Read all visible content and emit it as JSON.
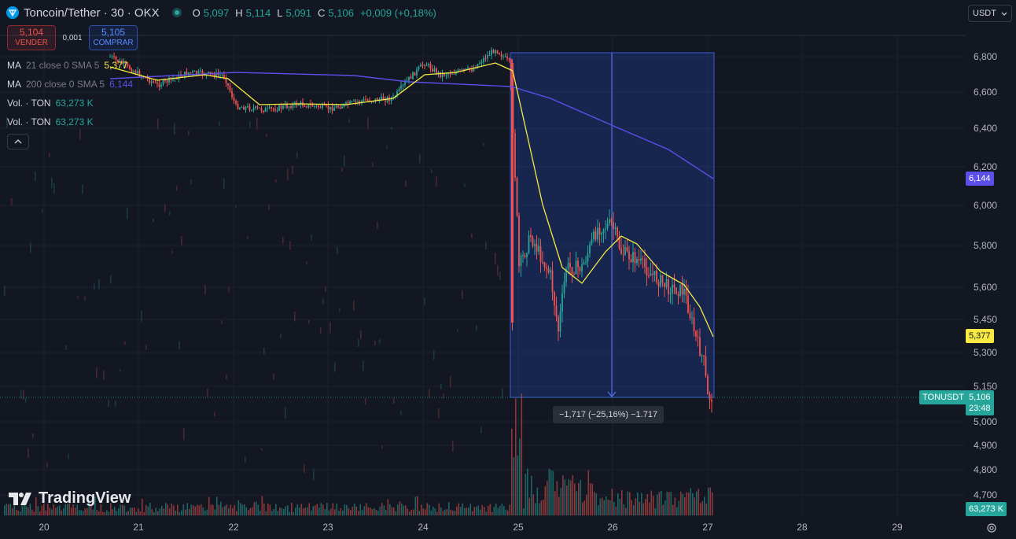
{
  "header": {
    "symbol": "Toncoin/Tether · 30 · OKX",
    "ohlc": [
      {
        "key": "O",
        "value": "5,097"
      },
      {
        "key": "H",
        "value": "5,114"
      },
      {
        "key": "L",
        "value": "5,091"
      },
      {
        "key": "C",
        "value": "5,106"
      }
    ],
    "change": "+0,009 (+0,18%)"
  },
  "trade": {
    "sell_price": "5,104",
    "sell_label": "VENDER",
    "spread": "0,001",
    "buy_price": "5,105",
    "buy_label": "COMPRAR"
  },
  "indicators": [
    {
      "name": "MA",
      "params": "21 close 0 SMA 5",
      "value": "5,377",
      "color": "#f5e942"
    },
    {
      "name": "MA",
      "params": "200 close 0 SMA 5",
      "value": "6,144",
      "color": "#5c4ee8"
    },
    {
      "name": "Vol. · TON",
      "params": "",
      "value": "63,273 K",
      "color": "#26a69a"
    },
    {
      "name": "Vol. · TON",
      "params": "",
      "value": "63,273 K",
      "color": "#26a69a"
    }
  ],
  "currency": "USDT",
  "price_axis": {
    "ticks": [
      "6,800",
      "6,600",
      "6,400",
      "6,200",
      "6,000",
      "5,800",
      "5,600",
      "5,450",
      "5,300",
      "5,150",
      "5,000",
      "4,900",
      "4,800",
      "4,700"
    ]
  },
  "time_axis": {
    "ticks": [
      "20",
      "21",
      "22",
      "23",
      "24",
      "25",
      "26",
      "27",
      "28",
      "29"
    ]
  },
  "tags": {
    "ma200": "6,144",
    "ma21": "5,377",
    "symbol": "TONUSDT",
    "last_price": "5,106",
    "countdown": "23:48",
    "volume": "63,273 K"
  },
  "measure_label": "−1,717 (−25,16%) −1.717",
  "logo_text": "TradingView",
  "colors": {
    "background": "#131722",
    "up": "#26a69a",
    "down": "#ef5350",
    "ma21": "#f5e942",
    "ma200": "#5c4ee8",
    "measure_box": "#2962ff"
  },
  "icons": {
    "symbol": "toncoin-logo-icon",
    "live": "live-status-dot-icon",
    "collapse": "chevron-up-icon",
    "currency_dropdown": "chevron-down-icon",
    "settings": "gear-icon",
    "logo": "tradingview-logo-icon"
  }
}
